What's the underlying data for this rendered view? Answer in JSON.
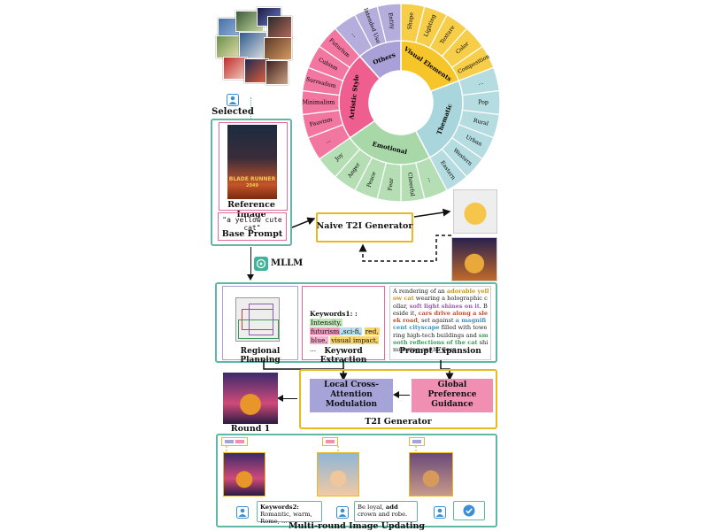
{
  "selection": {
    "caption": "Selected"
  },
  "reference": {
    "image_caption": "Reference Image",
    "poster_title": "BLADE RUNNER",
    "poster_sub": "2049",
    "base_prompt_text": "\"a yellow cute cat\"",
    "base_prompt_caption": "Base Prompt"
  },
  "mllm": {
    "label": "MLLM"
  },
  "naive": {
    "label": "Naive T2I Generator"
  },
  "wheel": {
    "inner": [
      {
        "label": "Visual Elements",
        "color": "#f5c52a"
      },
      {
        "label": "Thematic",
        "color": "#a8d6dc"
      },
      {
        "label": "Emotional",
        "color": "#a8d8a8"
      },
      {
        "label": "Artistic Style",
        "color": "#ee5f90"
      },
      {
        "label": "Others",
        "color": "#a8a0d6"
      }
    ],
    "outer": [
      {
        "label": "Shape"
      },
      {
        "label": "Lighting"
      },
      {
        "label": "Texture"
      },
      {
        "label": "Color"
      },
      {
        "label": "Composition"
      },
      {
        "label": "..."
      },
      {
        "label": "Pop"
      },
      {
        "label": "Rural"
      },
      {
        "label": "Urban"
      },
      {
        "label": "Western"
      },
      {
        "label": "Eastern"
      },
      {
        "label": "..."
      },
      {
        "label": "Cheerful"
      },
      {
        "label": "Fear"
      },
      {
        "label": "Peace"
      },
      {
        "label": "Anger"
      },
      {
        "label": "Joy"
      },
      {
        "label": "..."
      },
      {
        "label": "Fauvism"
      },
      {
        "label": "Minimalism"
      },
      {
        "label": "Surrealism"
      },
      {
        "label": "Cubism"
      },
      {
        "label": "Futurism"
      },
      {
        "label": "..."
      },
      {
        "label": "Intended Use"
      },
      {
        "label": "Entity"
      }
    ]
  },
  "analysis": {
    "regional": {
      "caption": "Regional Planning"
    },
    "keywords": {
      "caption": "Keyword Extraction",
      "prefix": "Keywords1: :",
      "items": [
        "Intensity,",
        "futurism",
        ",sci-fi,",
        "red,",
        "blue,",
        "visual impact,",
        "..."
      ]
    },
    "expansion": {
      "caption": "Prompt Expansion",
      "parts": [
        {
          "text": "A rendering of an ",
          "style": "plain"
        },
        {
          "text": "adorable yellow cat",
          "style": "yellow"
        },
        {
          "text": " wearing a holographic collar, ",
          "style": "plain"
        },
        {
          "text": "soft light shines on it",
          "style": "purple"
        },
        {
          "text": ". Beside it, ",
          "style": "plain"
        },
        {
          "text": "cars drive along a sleek road",
          "style": "red"
        },
        {
          "text": ", set against ",
          "style": "plain"
        },
        {
          "text": "a magnificent cityscape",
          "style": "blue"
        },
        {
          "text": " filled with towering high-tech buildings and ",
          "style": "plain"
        },
        {
          "text": "smooth reflections of the cat",
          "style": "green"
        },
        {
          "text": " shimmering on the floor.",
          "style": "plain"
        }
      ]
    }
  },
  "t2i": {
    "local": "Local Cross-Attention Modulation",
    "global": "Global Preference Guidance",
    "caption": "T2I Generator",
    "round_caption": "Round 1"
  },
  "multiround": {
    "caption": "Multi-round Image Updating",
    "feedback1_bold": "Keywords2:",
    "feedback1_rest": " Romantic, warm, Rome, ...",
    "feedback2_pre": "Be loyal, ",
    "feedback2_bold": "add",
    "feedback2_rest": " crown and robe."
  },
  "colors": {
    "teal": "#5fb8a6",
    "gold": "#e8b923",
    "pink": "#e06a9a",
    "purple_box": "#a6a3d8",
    "pink_box": "#f08fb2",
    "user_icon": "#3a8fd6",
    "gpt": "#3fb39a"
  }
}
